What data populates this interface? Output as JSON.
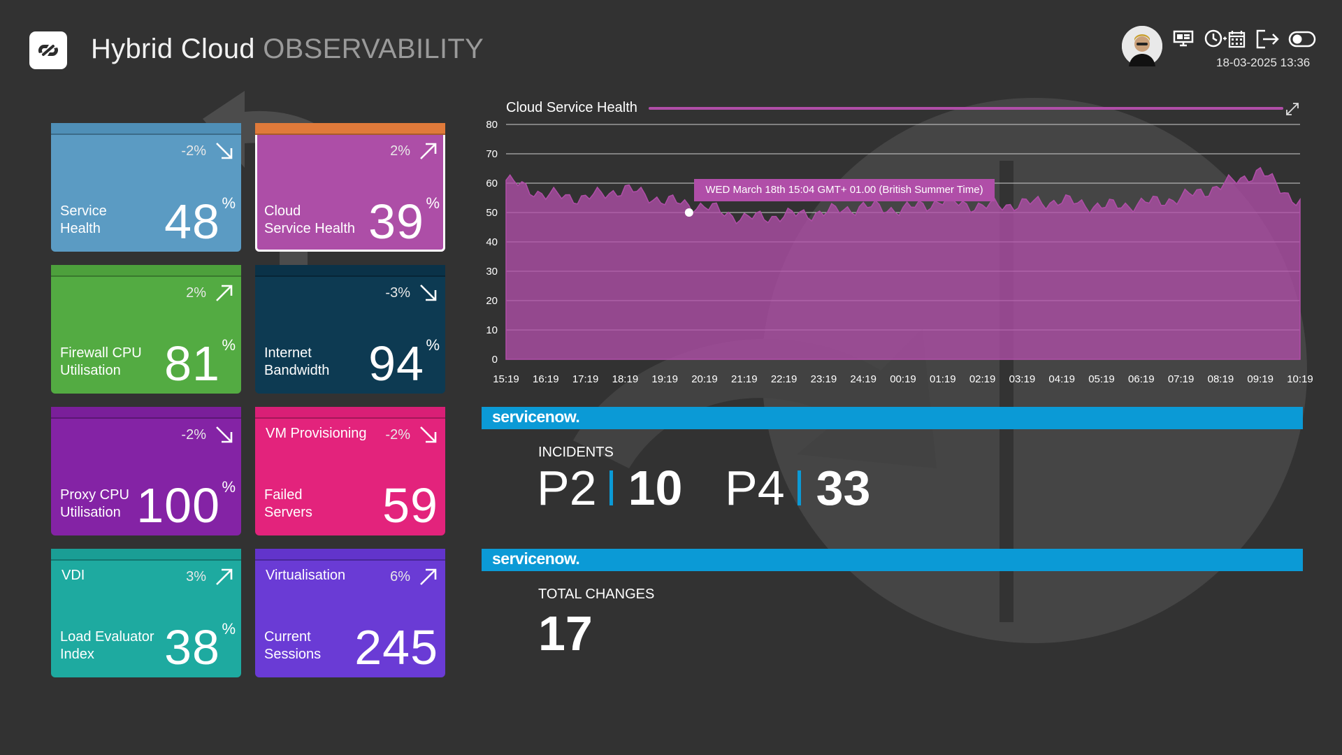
{
  "header": {
    "title_main": "Hybrid Cloud",
    "title_sub": "OBSERVABILITY",
    "datetime": "18-03-2025 13:36"
  },
  "icons": {
    "logo": "link-logo-icon",
    "avatar": "user-avatar",
    "display": "monitor-icon",
    "schedule": "clock-calendar-icon",
    "logout": "logout-icon",
    "toggle": "toggle-icon",
    "expand": "expand-icon"
  },
  "tiles": [
    {
      "label1": "Service",
      "label2": "Health",
      "top_label": "",
      "value": "48",
      "unit": "%",
      "change": "-2%",
      "direction": "down",
      "color": "#5b9bc3",
      "bar_color": "#4f8fb7"
    },
    {
      "label1": "Cloud",
      "label2": "Service Health",
      "top_label": "",
      "value": "39",
      "unit": "%",
      "change": "2%",
      "direction": "up",
      "color": "#ad4ea7",
      "bar_color": "#e07a3a"
    },
    {
      "label1": "Firewall CPU",
      "label2": "Utilisation",
      "top_label": "",
      "value": "81",
      "unit": "%",
      "change": "2%",
      "direction": "up",
      "color": "#53ab42",
      "bar_color": "#4da03c"
    },
    {
      "label1": "Internet",
      "label2": "Bandwidth",
      "top_label": "",
      "value": "94",
      "unit": "%",
      "change": "-3%",
      "direction": "down",
      "color": "#0d3a52",
      "bar_color": "#0a3248"
    },
    {
      "label1": "Proxy CPU",
      "label2": "Utilisation",
      "top_label": "",
      "value": "100",
      "unit": "%",
      "change": "-2%",
      "direction": "down",
      "color": "#8423a5",
      "bar_color": "#7a1f9a"
    },
    {
      "label1": "Failed",
      "label2": "Servers",
      "top_label": "VM Provisioning",
      "value": "59",
      "unit": "",
      "change": "-2%",
      "direction": "down",
      "color": "#e3237c",
      "bar_color": "#d91f76"
    },
    {
      "label1": "Load Evaluator",
      "label2": "Index",
      "top_label": "VDI",
      "value": "38",
      "unit": "%",
      "change": "3%",
      "direction": "up",
      "color": "#1eaaa0",
      "bar_color": "#1a9e95"
    },
    {
      "label1": "Current",
      "label2": "Sessions",
      "top_label": "Virtualisation",
      "value": "245",
      "unit": "",
      "change": "6%",
      "direction": "up",
      "color": "#6a3bd5",
      "bar_color": "#6234cb"
    }
  ],
  "chart": {
    "title": "Cloud Service Health",
    "tooltip": "WED March 18th 15:04 GMT+ 01.00 (British Summer Time)"
  },
  "chart_data": {
    "type": "area",
    "title": "Cloud Service Health",
    "x": [
      "15:19",
      "16:19",
      "17:19",
      "18:19",
      "19:19",
      "20:19",
      "21:19",
      "22:19",
      "23:19",
      "24:19",
      "00:19",
      "01:19",
      "02:19",
      "03:19",
      "04:19",
      "05:19",
      "06:19",
      "07:19",
      "08:19",
      "09:19",
      "10:19"
    ],
    "series": [
      {
        "name": "Cloud Service Health",
        "color": "#b04ea8",
        "values": [
          61,
          56,
          55,
          58,
          54,
          52,
          48,
          49,
          50,
          52,
          51,
          54,
          52,
          53,
          54,
          52,
          53,
          55,
          59,
          64,
          53
        ]
      }
    ],
    "ylim": [
      0,
      80
    ],
    "yticks": [
      0,
      10,
      20,
      30,
      40,
      50,
      60,
      70,
      80
    ],
    "grid": true
  },
  "servicenow": {
    "logo_text": "servicenow.",
    "incidents_caption": "INCIDENTS",
    "incidents": [
      {
        "label": "P2",
        "count": "10"
      },
      {
        "label": "P4",
        "count": "33"
      }
    ],
    "changes_caption": "TOTAL CHANGES",
    "changes_count": "17"
  }
}
